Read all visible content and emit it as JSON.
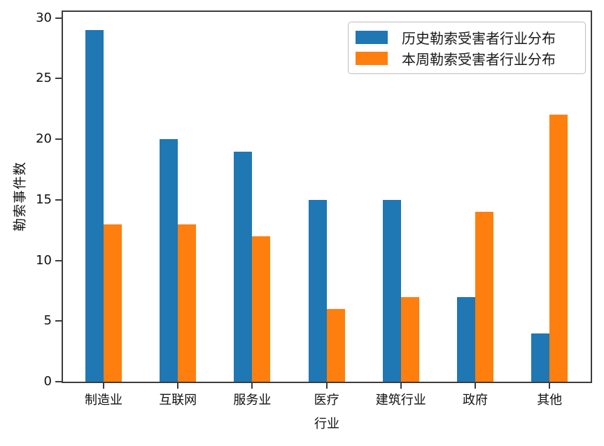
{
  "chart_data": {
    "type": "bar",
    "title": "",
    "xlabel": "行业",
    "ylabel": "勒索事件数",
    "categories": [
      "制造业",
      "互联网",
      "服务业",
      "医疗",
      "建筑行业",
      "政府",
      "其他"
    ],
    "series": [
      {
        "name": "历史勒索受害者行业分布",
        "color": "#1f77b4",
        "values": [
          29,
          20,
          19,
          15,
          15,
          7,
          4
        ]
      },
      {
        "name": "本周勒索受害者行业分布",
        "color": "#ff7f0e",
        "values": [
          13,
          13,
          12,
          6,
          7,
          14,
          22
        ]
      }
    ],
    "ylim": [
      0,
      30.5
    ],
    "yticks": [
      0,
      5,
      10,
      15,
      20,
      25,
      30
    ],
    "grid": false,
    "legend_position": "upper right",
    "spine_color": "#3c3c3c",
    "background_color": "#ffffff"
  }
}
